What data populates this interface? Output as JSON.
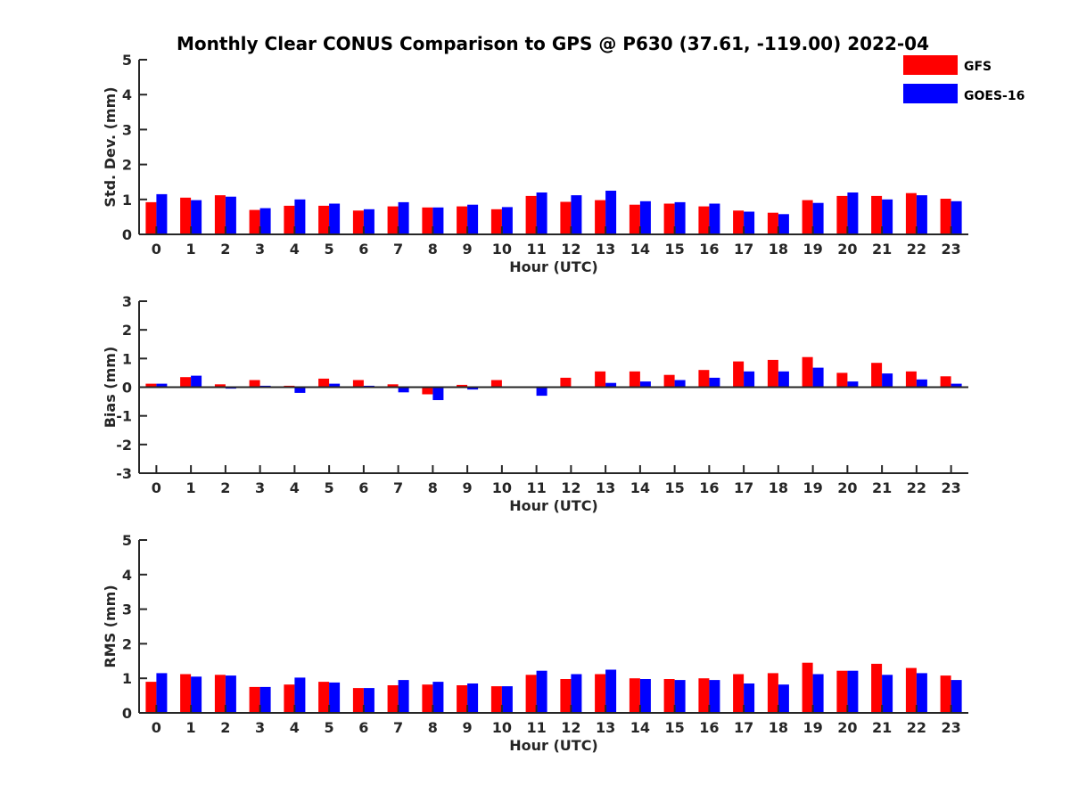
{
  "chart_data": {
    "title": "Monthly Clear CONUS Comparison to GPS @ P630 (37.61, -119.00) 2022-04",
    "legend": {
      "placement": "top-right",
      "entries": [
        {
          "name": "GFS",
          "color": "#ff0000"
        },
        {
          "name": "GOES-16",
          "color": "#0000ff"
        }
      ]
    },
    "subplots": [
      {
        "type": "bar",
        "key": "std",
        "xlabel": "Hour (UTC)",
        "ylabel": "Std. Dev. (mm)",
        "ylim": [
          0,
          5
        ],
        "yticks": [
          "0",
          "1",
          "2",
          "3",
          "4",
          "5"
        ],
        "categories": [
          "0",
          "1",
          "2",
          "3",
          "4",
          "5",
          "6",
          "7",
          "8",
          "9",
          "10",
          "11",
          "12",
          "13",
          "14",
          "15",
          "16",
          "17",
          "18",
          "19",
          "20",
          "21",
          "22",
          "23"
        ],
        "series": [
          {
            "name": "GFS",
            "color": "#ff0000",
            "values": [
              0.92,
              1.05,
              1.12,
              0.7,
              0.82,
              0.82,
              0.68,
              0.8,
              0.77,
              0.8,
              0.72,
              1.1,
              0.93,
              0.98,
              0.85,
              0.88,
              0.8,
              0.68,
              0.62,
              0.98,
              1.1,
              1.1,
              1.18,
              1.02
            ]
          },
          {
            "name": "GOES-16",
            "color": "#0000ff",
            "values": [
              1.15,
              0.98,
              1.08,
              0.75,
              1.0,
              0.88,
              0.72,
              0.92,
              0.77,
              0.85,
              0.78,
              1.2,
              1.12,
              1.25,
              0.95,
              0.92,
              0.88,
              0.65,
              0.58,
              0.9,
              1.2,
              1.0,
              1.12,
              0.95
            ]
          }
        ]
      },
      {
        "type": "bar",
        "key": "bias",
        "xlabel": "Hour (UTC)",
        "ylabel": "Bias (mm)",
        "ylim": [
          -3,
          3
        ],
        "yticks": [
          "-3",
          "-2",
          "-1",
          "0",
          "1",
          "2",
          "3"
        ],
        "categories": [
          "0",
          "1",
          "2",
          "3",
          "4",
          "5",
          "6",
          "7",
          "8",
          "9",
          "10",
          "11",
          "12",
          "13",
          "14",
          "15",
          "16",
          "17",
          "18",
          "19",
          "20",
          "21",
          "22",
          "23"
        ],
        "series": [
          {
            "name": "GFS",
            "color": "#ff0000",
            "values": [
              0.12,
              0.35,
              0.1,
              0.25,
              0.05,
              0.3,
              0.25,
              0.1,
              -0.25,
              0.08,
              0.25,
              0.0,
              0.33,
              0.55,
              0.55,
              0.43,
              0.6,
              0.9,
              0.95,
              1.05,
              0.5,
              0.85,
              0.55,
              0.38
            ]
          },
          {
            "name": "GOES-16",
            "color": "#0000ff",
            "values": [
              0.12,
              0.4,
              -0.05,
              0.05,
              -0.2,
              0.12,
              0.05,
              -0.18,
              -0.45,
              -0.08,
              0.03,
              -0.3,
              0.0,
              0.15,
              0.2,
              0.25,
              0.33,
              0.55,
              0.55,
              0.68,
              0.2,
              0.48,
              0.27,
              0.12
            ]
          }
        ]
      },
      {
        "type": "bar",
        "key": "rms",
        "xlabel": "Hour (UTC)",
        "ylabel": "RMS (mm)",
        "ylim": [
          0,
          5
        ],
        "yticks": [
          "0",
          "1",
          "2",
          "3",
          "4",
          "5"
        ],
        "categories": [
          "0",
          "1",
          "2",
          "3",
          "4",
          "5",
          "6",
          "7",
          "8",
          "9",
          "10",
          "11",
          "12",
          "13",
          "14",
          "15",
          "16",
          "17",
          "18",
          "19",
          "20",
          "21",
          "22",
          "23"
        ],
        "series": [
          {
            "name": "GFS",
            "color": "#ff0000",
            "values": [
              0.9,
              1.12,
              1.1,
              0.75,
              0.82,
              0.9,
              0.72,
              0.8,
              0.82,
              0.8,
              0.77,
              1.1,
              0.98,
              1.12,
              1.0,
              0.98,
              1.0,
              1.12,
              1.15,
              1.45,
              1.22,
              1.42,
              1.3,
              1.08
            ]
          },
          {
            "name": "GOES-16",
            "color": "#0000ff",
            "values": [
              1.15,
              1.05,
              1.08,
              0.75,
              1.02,
              0.88,
              0.72,
              0.95,
              0.9,
              0.85,
              0.77,
              1.22,
              1.12,
              1.25,
              0.98,
              0.95,
              0.95,
              0.85,
              0.82,
              1.12,
              1.22,
              1.1,
              1.15,
              0.95
            ]
          }
        ]
      }
    ]
  }
}
